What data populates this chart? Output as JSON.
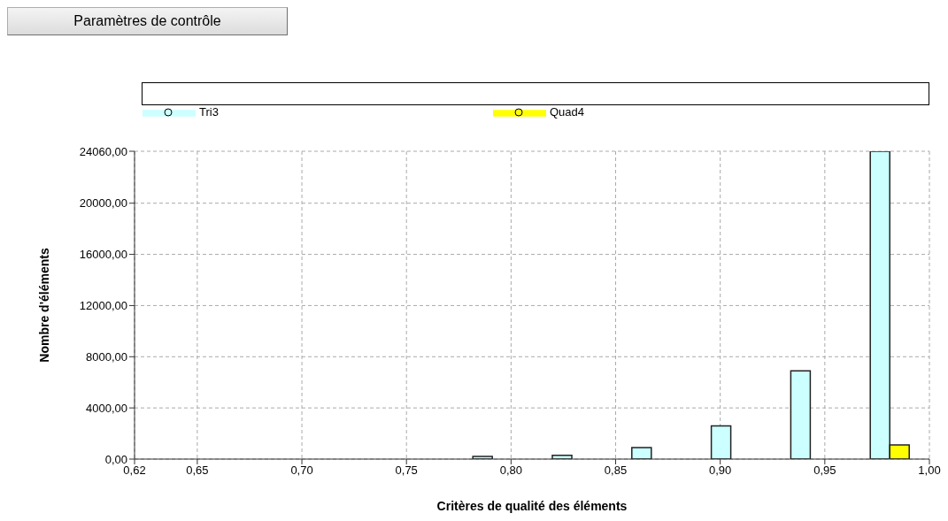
{
  "chart_data": {
    "type": "bar",
    "xlabel": "Critères de qualité des éléments",
    "ylabel": "Nombre d'éléments",
    "annotations": [
      "Paramètres de contrôle"
    ],
    "x": [
      0.639,
      0.677,
      0.715,
      0.753,
      0.791,
      0.829,
      0.867,
      0.905,
      0.943,
      0.981
    ],
    "series": [
      {
        "name": "Tri3",
        "color": "#ccffff",
        "values": [
          0,
          0,
          0,
          0,
          200,
          300,
          900,
          2600,
          6900,
          24060
        ]
      },
      {
        "name": "Quad4",
        "color": "#ffff00",
        "values": [
          0,
          0,
          0,
          0,
          0,
          0,
          0,
          0,
          0,
          1100
        ]
      }
    ],
    "xlim": [
      0.62,
      1.0
    ],
    "xticks": [
      {
        "value": 0.62,
        "label": "0,62"
      },
      {
        "value": 0.65,
        "label": "0,65"
      },
      {
        "value": 0.7,
        "label": "0,70"
      },
      {
        "value": 0.75,
        "label": "0,75"
      },
      {
        "value": 0.8,
        "label": "0,80"
      },
      {
        "value": 0.85,
        "label": "0,85"
      },
      {
        "value": 0.9,
        "label": "0,90"
      },
      {
        "value": 0.95,
        "label": "0,95"
      },
      {
        "value": 1.0,
        "label": "1,00"
      }
    ],
    "ylim": [
      0,
      24060
    ],
    "yticks": [
      {
        "value": 0,
        "label": "0,00"
      },
      {
        "value": 4000,
        "label": "4000,00"
      },
      {
        "value": 8000,
        "label": "8000,00"
      },
      {
        "value": 12000,
        "label": "12000,00"
      },
      {
        "value": 16000,
        "label": "16000,00"
      },
      {
        "value": 20000,
        "label": "20000,00"
      },
      {
        "value": 24060,
        "label": "24060,00"
      }
    ],
    "grid": true,
    "legend": "top"
  }
}
